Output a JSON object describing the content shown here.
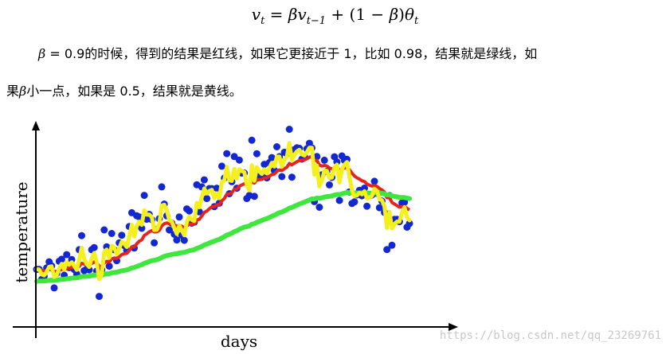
{
  "formula": {
    "v": "v",
    "t": "t",
    "equals": " = ",
    "beta": "β",
    "t_minus_1": "t−1",
    "plus": " + (1 − ",
    "paren_close": ")",
    "theta": "θ"
  },
  "paragraph1": {
    "beta": "β",
    "text": " = 0.9的时候，得到的结果是红线，如果它更接近于 1，比如 0.98，结果就是绿线，如"
  },
  "paragraph2": {
    "prefix": "果",
    "beta": "β",
    "text": "小一点，如果是 0.5，结果就是黄线。"
  },
  "figure": {
    "ylabel": "temperature",
    "xlabel": "days",
    "watermark": "https://blog.csdn.net/qq_23269761"
  },
  "colors": {
    "dots": "#1428d2",
    "red_line": "#e8231e",
    "green_line": "#3ee63e",
    "yellow_line": "#f4f01c",
    "axis": "#000000"
  },
  "chart_data": {
    "type": "scatter",
    "xlabel": "days",
    "ylabel": "temperature",
    "series": [
      {
        "color": "red",
        "kind": "line"
      },
      {
        "color": "green",
        "kind": "line"
      },
      {
        "color": "yellow",
        "kind": "line"
      }
    ],
    "annotations": {
      "red": "β = 0.9",
      "green": "β = 0.98",
      "yellow": "β = 0.5"
    }
  }
}
